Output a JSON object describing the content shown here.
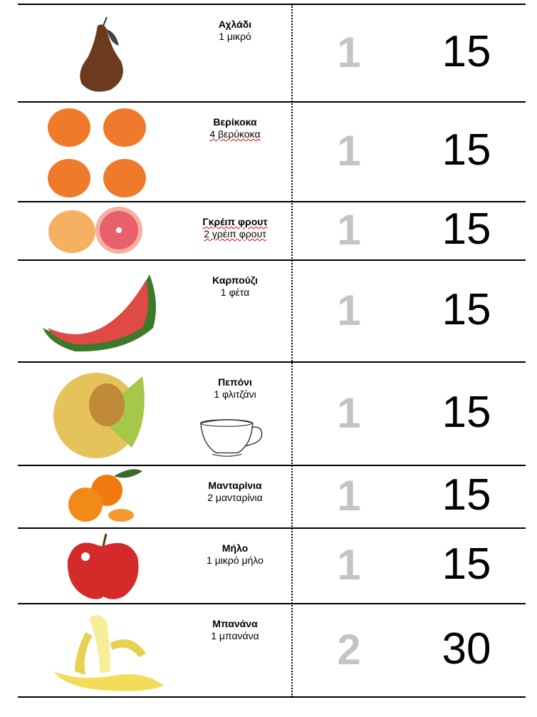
{
  "rows": [
    {
      "name": "Αχλάδι",
      "amount": "1 μικρό",
      "portions": "1",
      "carbs": "15",
      "icon": "pear",
      "spell": false
    },
    {
      "name": "Βερίκοκα",
      "amount": "4 βερύκοκα",
      "portions": "1",
      "carbs": "15",
      "icon": "apricots",
      "spell": false,
      "amount_spell": true
    },
    {
      "name": "Γκρέιπ φρουτ",
      "amount": "2 γρέιπ φρουτ",
      "portions": "1",
      "carbs": "15",
      "icon": "grapefruit",
      "spell": true,
      "amount_spell": true
    },
    {
      "name": "Καρπούζι",
      "amount": "1 φέτα",
      "portions": "1",
      "carbs": "15",
      "icon": "watermelon"
    },
    {
      "name": "Πεπόνι",
      "amount": "1 φλιτζάνι",
      "portions": "1",
      "carbs": "15",
      "icon": "melon",
      "cup": true
    },
    {
      "name": "Μανταρίνια",
      "amount": "2 μανταρίνια",
      "portions": "1",
      "carbs": "15",
      "icon": "mandarins"
    },
    {
      "name": "Μήλο",
      "amount": "1 μικρό μήλο",
      "portions": "1",
      "carbs": "15",
      "icon": "apple"
    },
    {
      "name": "Μπανάνα",
      "amount": "1 μπανάνα",
      "portions": "2",
      "carbs": "30",
      "icon": "banana"
    }
  ],
  "colors": {
    "portion": "#c4c4c4",
    "line": "#000000"
  }
}
